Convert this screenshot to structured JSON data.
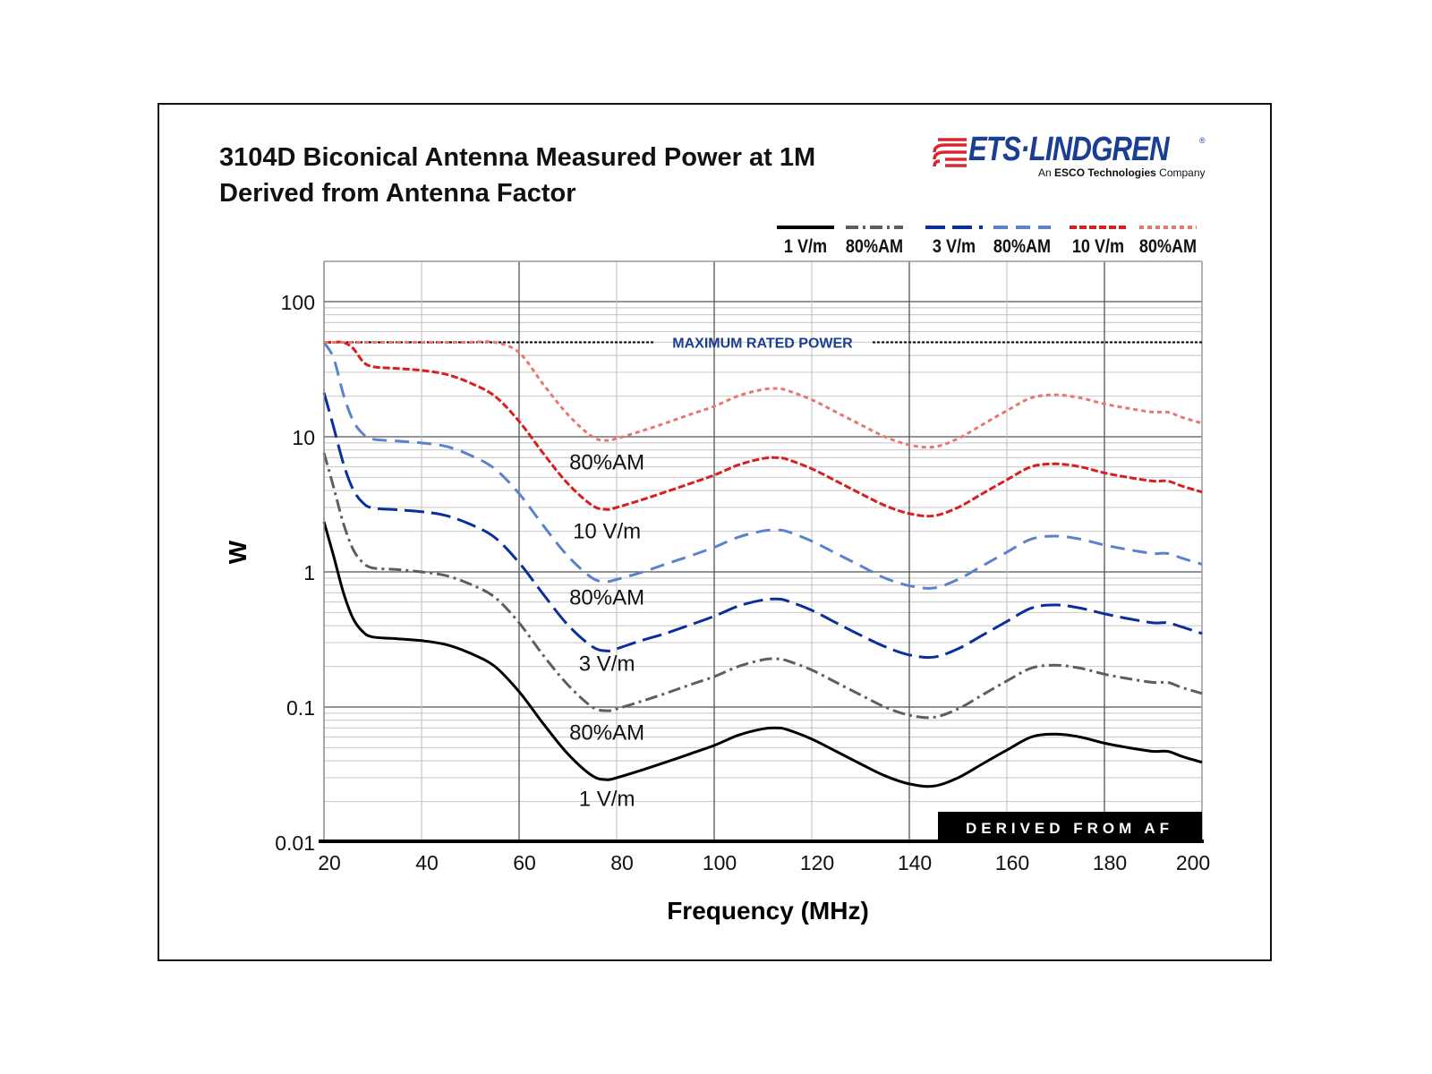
{
  "header": {
    "title_line1": "3104D Biconical Antenna Measured Power at 1M",
    "title_line2": "Derived from Antenna Factor"
  },
  "logo": {
    "name": "ETS·LINDGREN",
    "tagline_prefix": "An ",
    "tagline_bold": "ESCO Technologies",
    "tagline_suffix": " Company",
    "registered": "®",
    "colors": {
      "stripes": "#d7282f",
      "text": "#1a3e93"
    }
  },
  "badge": {
    "label": "DERIVED FROM AF"
  },
  "chart_data": {
    "type": "line",
    "title": "3104D Biconical Antenna Measured Power at 1M Derived from Antenna Factor",
    "xlabel": "Frequency (MHz)",
    "ylabel": "W",
    "xlim": [
      20,
      200
    ],
    "ylim": [
      0.01,
      200
    ],
    "yscale": "log",
    "grid": true,
    "legend_position": "top-right",
    "x_ticks": [
      20,
      40,
      60,
      80,
      100,
      120,
      140,
      160,
      180,
      200
    ],
    "x_tick_labels": [
      "20",
      "40",
      "60",
      "80",
      "100",
      "120",
      "140",
      "160",
      "180",
      "200"
    ],
    "y_ticks": [
      0.01,
      0.1,
      1,
      10,
      100
    ],
    "y_tick_labels": [
      "0.01",
      "0.1",
      "1",
      "10",
      "100"
    ],
    "reference_line": {
      "label": "MAXIMUM RATED POWER",
      "value": 50,
      "color": "#111111",
      "label_color": "#1a3e93"
    },
    "x": [
      20,
      22,
      24,
      26,
      28,
      30,
      35,
      40,
      45,
      50,
      55,
      60,
      65,
      70,
      75,
      78,
      80,
      85,
      90,
      95,
      100,
      105,
      110,
      113,
      115,
      120,
      125,
      130,
      135,
      140,
      145,
      150,
      155,
      160,
      165,
      170,
      175,
      180,
      185,
      190,
      193,
      196,
      200
    ],
    "series": [
      {
        "name": "1 V/m",
        "legend": "1 V/m",
        "color": "#000000",
        "style": "solid",
        "values": [
          2.35,
          1.3,
          0.7,
          0.45,
          0.36,
          0.33,
          0.32,
          0.31,
          0.29,
          0.25,
          0.2,
          0.13,
          0.075,
          0.045,
          0.031,
          0.029,
          0.03,
          0.034,
          0.039,
          0.045,
          0.052,
          0.062,
          0.069,
          0.07,
          0.068,
          0.058,
          0.047,
          0.038,
          0.031,
          0.027,
          0.026,
          0.03,
          0.038,
          0.048,
          0.06,
          0.063,
          0.06,
          0.054,
          0.05,
          0.047,
          0.047,
          0.043,
          0.039
        ]
      },
      {
        "name": "1 V/m 80%AM",
        "legend": "80%AM",
        "color": "#5e5e5e",
        "style": "dashdot",
        "values": [
          7.6,
          4.2,
          2.27,
          1.46,
          1.17,
          1.07,
          1.04,
          1.0,
          0.94,
          0.81,
          0.65,
          0.42,
          0.24,
          0.146,
          0.1,
          0.094,
          0.097,
          0.11,
          0.126,
          0.146,
          0.168,
          0.2,
          0.224,
          0.227,
          0.22,
          0.188,
          0.152,
          0.123,
          0.1,
          0.087,
          0.084,
          0.097,
          0.123,
          0.156,
          0.194,
          0.204,
          0.194,
          0.175,
          0.162,
          0.152,
          0.152,
          0.139,
          0.126
        ]
      },
      {
        "name": "3 V/m",
        "legend": "3 V/m",
        "color": "#0a2f9c",
        "style": "longdash",
        "values": [
          21.2,
          11.7,
          6.3,
          4.05,
          3.24,
          2.97,
          2.88,
          2.79,
          2.61,
          2.25,
          1.8,
          1.17,
          0.68,
          0.405,
          0.28,
          0.26,
          0.27,
          0.31,
          0.35,
          0.405,
          0.47,
          0.56,
          0.62,
          0.63,
          0.61,
          0.52,
          0.42,
          0.34,
          0.28,
          0.243,
          0.234,
          0.27,
          0.34,
          0.43,
          0.54,
          0.57,
          0.54,
          0.49,
          0.45,
          0.42,
          0.42,
          0.39,
          0.35
        ]
      },
      {
        "name": "3 V/m 80%AM",
        "legend": "80%AM",
        "color": "#5b82cc",
        "style": "dash",
        "values": [
          50,
          38,
          20.4,
          13.1,
          10.5,
          9.6,
          9.3,
          9.0,
          8.5,
          7.3,
          5.8,
          3.8,
          2.19,
          1.31,
          0.9,
          0.85,
          0.88,
          0.99,
          1.14,
          1.31,
          1.52,
          1.81,
          2.01,
          2.04,
          1.99,
          1.69,
          1.37,
          1.11,
          0.9,
          0.79,
          0.76,
          0.88,
          1.11,
          1.4,
          1.75,
          1.84,
          1.75,
          1.58,
          1.46,
          1.37,
          1.37,
          1.26,
          1.14
        ]
      },
      {
        "name": "10 V/m",
        "legend": "10 V/m",
        "color": "#d81e1e",
        "style": "shortdash",
        "values": [
          50,
          50,
          50,
          45,
          36,
          33,
          32,
          31,
          29,
          25,
          20,
          13,
          7.5,
          4.5,
          3.1,
          2.9,
          3.0,
          3.4,
          3.9,
          4.5,
          5.2,
          6.2,
          6.9,
          7.0,
          6.8,
          5.8,
          4.7,
          3.8,
          3.1,
          2.7,
          2.6,
          3.0,
          3.8,
          4.8,
          6.0,
          6.3,
          6.0,
          5.4,
          5.0,
          4.7,
          4.7,
          4.3,
          3.9
        ]
      },
      {
        "name": "10 V/m 80%AM",
        "legend": "80%AM",
        "color": "#e8786e",
        "style": "dot",
        "values": [
          50,
          50,
          50,
          50,
          50,
          50,
          50,
          50,
          50,
          50,
          50,
          42,
          24.3,
          14.6,
          10.0,
          9.4,
          9.7,
          11.0,
          12.6,
          14.6,
          16.8,
          20.1,
          22.4,
          22.7,
          22.0,
          18.8,
          15.2,
          12.3,
          10.0,
          8.7,
          8.4,
          9.7,
          12.3,
          15.6,
          19.4,
          20.4,
          19.4,
          17.5,
          16.2,
          15.2,
          15.2,
          13.9,
          12.6
        ]
      }
    ],
    "curve_labels": [
      {
        "text": "80%AM",
        "x": 78,
        "y": 6.5
      },
      {
        "text": "10 V/m",
        "x": 78,
        "y": 2.0
      },
      {
        "text": "80%AM",
        "x": 78,
        "y": 0.65
      },
      {
        "text": "3 V/m",
        "x": 78,
        "y": 0.21
      },
      {
        "text": "80%AM",
        "x": 78,
        "y": 0.065
      },
      {
        "text": "1 V/m",
        "x": 78,
        "y": 0.021
      }
    ]
  }
}
